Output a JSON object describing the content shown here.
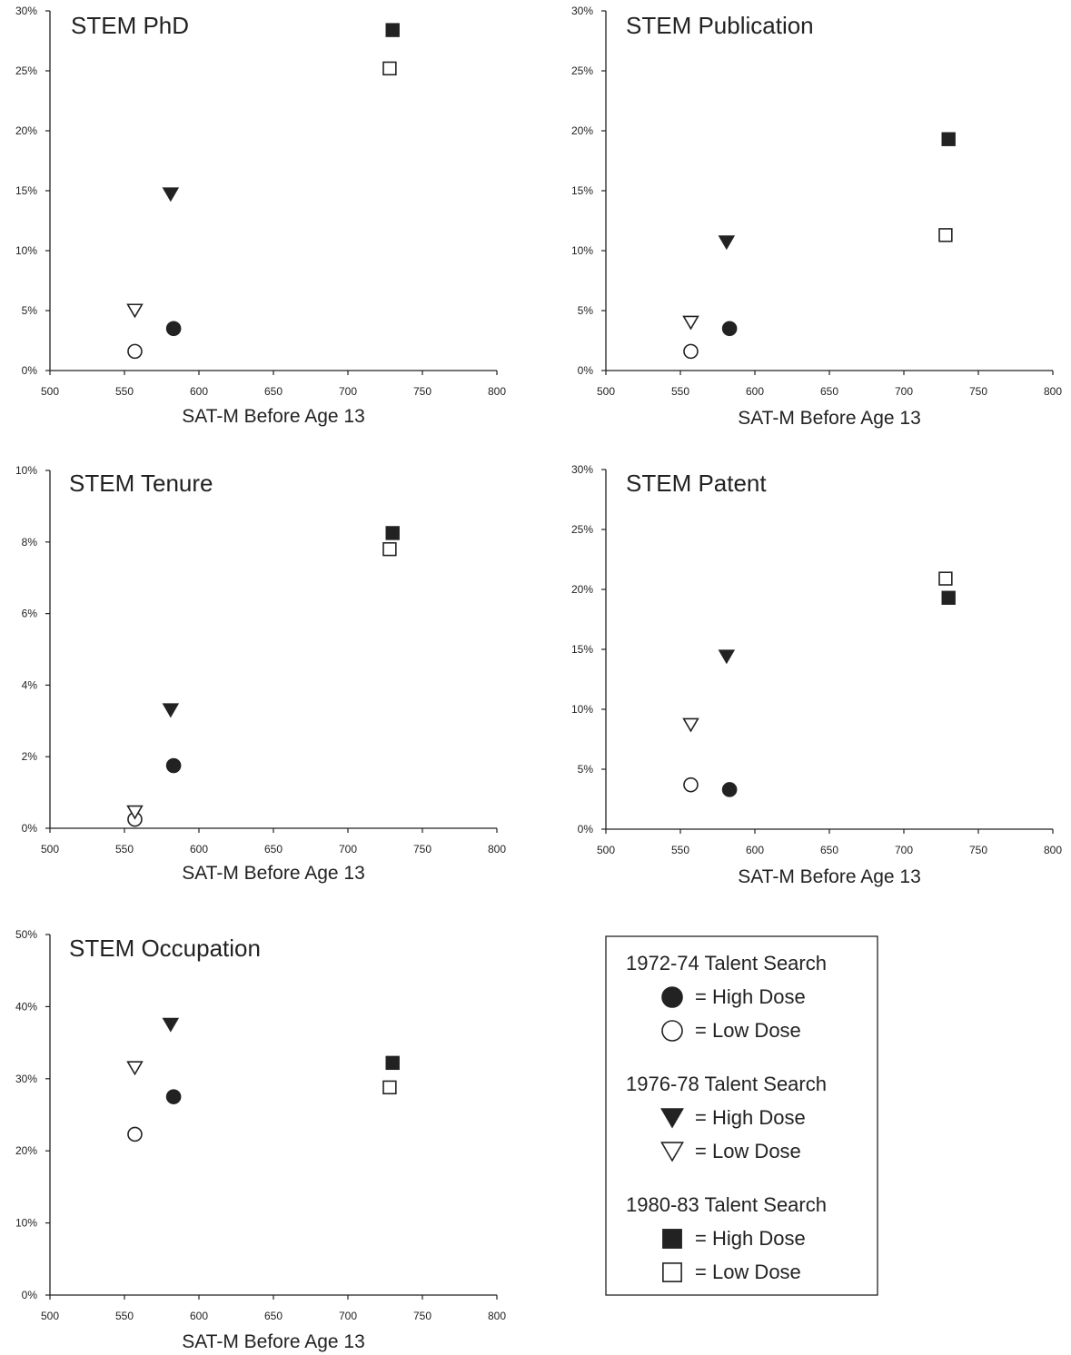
{
  "colors": {
    "marker": "#222222",
    "axis": "#222222",
    "background": "#ffffff"
  },
  "legend": {
    "groups": [
      {
        "title": "1972-74 Talent Search",
        "shape": "circle",
        "items": [
          {
            "fill": "filled",
            "label": "= High Dose"
          },
          {
            "fill": "open",
            "label": "= Low Dose"
          }
        ]
      },
      {
        "title": "1976-78 Talent Search",
        "shape": "triangle",
        "items": [
          {
            "fill": "filled",
            "label": "= High Dose"
          },
          {
            "fill": "open",
            "label": "= Low Dose"
          }
        ]
      },
      {
        "title": "1980-83 Talent Search",
        "shape": "square",
        "items": [
          {
            "fill": "filled",
            "label": "= High Dose"
          },
          {
            "fill": "open",
            "label": "= Low Dose"
          }
        ]
      }
    ]
  },
  "chart_data": [
    {
      "type": "scatter",
      "title": "STEM PhD",
      "xlabel": "SAT-M Before Age 13",
      "ylabel": "",
      "xlim": [
        500,
        800
      ],
      "ylim": [
        0,
        30
      ],
      "xticks": [
        "500",
        "550",
        "600",
        "650",
        "700",
        "750",
        "800"
      ],
      "yticks": [
        "0%",
        "5%",
        "10%",
        "15%",
        "20%",
        "25%",
        "30%"
      ],
      "series": [
        {
          "cohort": "1972-74",
          "dose": "High",
          "shape": "circle",
          "fill": "filled",
          "x": 583,
          "y": 3.5
        },
        {
          "cohort": "1972-74",
          "dose": "Low",
          "shape": "circle",
          "fill": "open",
          "x": 557,
          "y": 1.6
        },
        {
          "cohort": "1976-78",
          "dose": "High",
          "shape": "triangle",
          "fill": "filled",
          "x": 581,
          "y": 14.7
        },
        {
          "cohort": "1976-78",
          "dose": "Low",
          "shape": "triangle",
          "fill": "open",
          "x": 557,
          "y": 5.0
        },
        {
          "cohort": "1980-83",
          "dose": "High",
          "shape": "square",
          "fill": "filled",
          "x": 730,
          "y": 28.4
        },
        {
          "cohort": "1980-83",
          "dose": "Low",
          "shape": "square",
          "fill": "open",
          "x": 728,
          "y": 25.2
        }
      ]
    },
    {
      "type": "scatter",
      "title": "STEM Publication",
      "xlabel": "SAT-M Before Age 13",
      "ylabel": "",
      "xlim": [
        500,
        800
      ],
      "ylim": [
        0,
        30
      ],
      "xticks": [
        "500",
        "550",
        "600",
        "650",
        "700",
        "750",
        "800"
      ],
      "yticks": [
        "0%",
        "5%",
        "10%",
        "15%",
        "20%",
        "25%",
        "30%"
      ],
      "series": [
        {
          "cohort": "1972-74",
          "dose": "High",
          "shape": "circle",
          "fill": "filled",
          "x": 583,
          "y": 3.5
        },
        {
          "cohort": "1972-74",
          "dose": "Low",
          "shape": "circle",
          "fill": "open",
          "x": 557,
          "y": 1.6
        },
        {
          "cohort": "1976-78",
          "dose": "High",
          "shape": "triangle",
          "fill": "filled",
          "x": 581,
          "y": 10.7
        },
        {
          "cohort": "1976-78",
          "dose": "Low",
          "shape": "triangle",
          "fill": "open",
          "x": 557,
          "y": 4.0
        },
        {
          "cohort": "1980-83",
          "dose": "High",
          "shape": "square",
          "fill": "filled",
          "x": 730,
          "y": 19.3
        },
        {
          "cohort": "1980-83",
          "dose": "Low",
          "shape": "square",
          "fill": "open",
          "x": 728,
          "y": 11.3
        }
      ]
    },
    {
      "type": "scatter",
      "title": "STEM Tenure",
      "xlabel": "SAT-M Before Age 13",
      "ylabel": "",
      "xlim": [
        500,
        800
      ],
      "ylim": [
        0,
        10
      ],
      "xticks": [
        "500",
        "550",
        "600",
        "650",
        "700",
        "750",
        "800"
      ],
      "yticks": [
        "0%",
        "2%",
        "4%",
        "6%",
        "8%",
        "10%"
      ],
      "series": [
        {
          "cohort": "1972-74",
          "dose": "High",
          "shape": "circle",
          "fill": "filled",
          "x": 583,
          "y": 1.75
        },
        {
          "cohort": "1972-74",
          "dose": "Low",
          "shape": "circle",
          "fill": "open",
          "x": 557,
          "y": 0.25
        },
        {
          "cohort": "1976-78",
          "dose": "High",
          "shape": "triangle",
          "fill": "filled",
          "x": 581,
          "y": 3.3
        },
        {
          "cohort": "1976-78",
          "dose": "Low",
          "shape": "triangle",
          "fill": "open",
          "x": 557,
          "y": 0.45
        },
        {
          "cohort": "1980-83",
          "dose": "High",
          "shape": "square",
          "fill": "filled",
          "x": 730,
          "y": 8.25
        },
        {
          "cohort": "1980-83",
          "dose": "Low",
          "shape": "square",
          "fill": "open",
          "x": 728,
          "y": 7.8
        }
      ]
    },
    {
      "type": "scatter",
      "title": "STEM Patent",
      "xlabel": "SAT-M Before Age 13",
      "ylabel": "",
      "xlim": [
        500,
        800
      ],
      "ylim": [
        0,
        30
      ],
      "xticks": [
        "500",
        "550",
        "600",
        "650",
        "700",
        "750",
        "800"
      ],
      "yticks": [
        "0%",
        "5%",
        "10%",
        "15%",
        "20%",
        "25%",
        "30%"
      ],
      "series": [
        {
          "cohort": "1972-74",
          "dose": "High",
          "shape": "circle",
          "fill": "filled",
          "x": 583,
          "y": 3.3
        },
        {
          "cohort": "1972-74",
          "dose": "Low",
          "shape": "circle",
          "fill": "open",
          "x": 557,
          "y": 3.7
        },
        {
          "cohort": "1976-78",
          "dose": "High",
          "shape": "triangle",
          "fill": "filled",
          "x": 581,
          "y": 14.4
        },
        {
          "cohort": "1976-78",
          "dose": "Low",
          "shape": "triangle",
          "fill": "open",
          "x": 557,
          "y": 8.7
        },
        {
          "cohort": "1980-83",
          "dose": "High",
          "shape": "square",
          "fill": "filled",
          "x": 730,
          "y": 19.3
        },
        {
          "cohort": "1980-83",
          "dose": "Low",
          "shape": "square",
          "fill": "open",
          "x": 728,
          "y": 20.9
        }
      ]
    },
    {
      "type": "scatter",
      "title": "STEM Occupation",
      "xlabel": "SAT-M Before Age 13",
      "ylabel": "",
      "xlim": [
        500,
        800
      ],
      "ylim": [
        0,
        50
      ],
      "xticks": [
        "500",
        "550",
        "600",
        "650",
        "700",
        "750",
        "800"
      ],
      "yticks": [
        "0%",
        "10%",
        "20%",
        "30%",
        "40%",
        "50%"
      ],
      "series": [
        {
          "cohort": "1972-74",
          "dose": "High",
          "shape": "circle",
          "fill": "filled",
          "x": 583,
          "y": 27.5
        },
        {
          "cohort": "1972-74",
          "dose": "Low",
          "shape": "circle",
          "fill": "open",
          "x": 557,
          "y": 22.3
        },
        {
          "cohort": "1976-78",
          "dose": "High",
          "shape": "triangle",
          "fill": "filled",
          "x": 581,
          "y": 37.5
        },
        {
          "cohort": "1976-78",
          "dose": "Low",
          "shape": "triangle",
          "fill": "open",
          "x": 557,
          "y": 31.5
        },
        {
          "cohort": "1980-83",
          "dose": "High",
          "shape": "square",
          "fill": "filled",
          "x": 730,
          "y": 32.2
        },
        {
          "cohort": "1980-83",
          "dose": "Low",
          "shape": "square",
          "fill": "open",
          "x": 728,
          "y": 28.8
        }
      ]
    }
  ]
}
